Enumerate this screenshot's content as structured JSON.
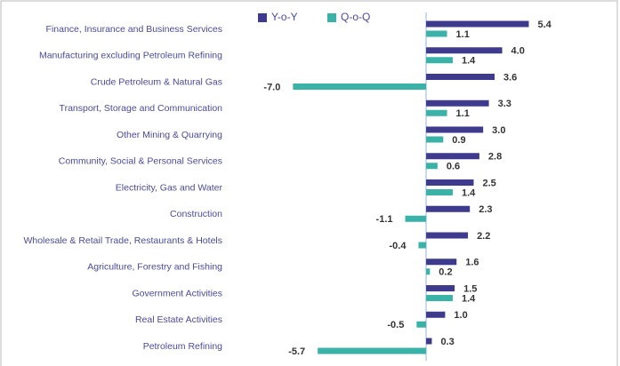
{
  "chart_data": {
    "type": "hbar",
    "categories": [
      "Finance, Insurance and Business Services",
      "Manufacturing excluding Petroleum Refining",
      "Crude Petroleum & Natural Gas",
      "Transport, Storage and Communication",
      "Other Mining & Quarrying",
      "Community, Social & Personal Services",
      "Electricity, Gas and Water",
      "Construction",
      "Wholesale & Retail Trade, Restaurants & Hotels",
      "Agriculture, Forestry and Fishing",
      "Government Activities",
      "Real Estate Activities",
      "Petroleum Refining"
    ],
    "series": [
      {
        "name": "Y-o-Y",
        "color": "#3e3a8e",
        "values": [
          5.4,
          4.0,
          3.6,
          3.3,
          3.0,
          2.8,
          2.5,
          2.3,
          2.2,
          1.6,
          1.5,
          1.0,
          0.3
        ],
        "value_labels": [
          "5.4",
          "4.0",
          "3.6",
          "3.3",
          "3.0",
          "2.8",
          "2.5",
          "2.3",
          "2.2",
          "1.6",
          "1.5",
          "1.0",
          "0.3"
        ]
      },
      {
        "name": "Q-o-Q",
        "color": "#3bb2a8",
        "values": [
          1.1,
          1.4,
          -7.0,
          1.1,
          0.9,
          0.6,
          1.4,
          -1.1,
          -0.4,
          0.2,
          1.4,
          -0.5,
          -5.7
        ],
        "value_labels": [
          "1.1",
          "1.4",
          "-7.0",
          "1.1",
          "0.9",
          "0.6",
          "1.4",
          "-1.1",
          "-0.4",
          "0.2",
          "1.4",
          "-0.5",
          "-5.7"
        ]
      }
    ],
    "xlim": [
      -8,
      6.5
    ],
    "legend": "top"
  }
}
